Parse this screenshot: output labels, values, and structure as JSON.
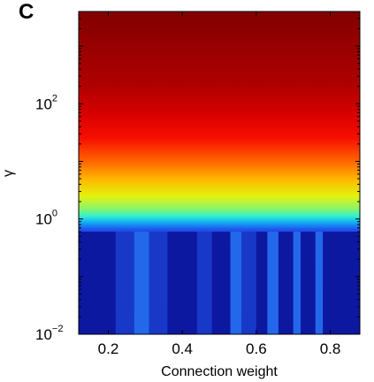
{
  "panel_label": "C",
  "chart_data": {
    "type": "heatmap",
    "title": "",
    "xlabel": "Connection weight",
    "ylabel": "γ",
    "xlim": [
      0.12,
      0.88
    ],
    "ylim_log10": [
      -2,
      3.6
    ],
    "y_scale": "log",
    "grid": false,
    "legend": "none",
    "colormap": "jet",
    "x_ticks": [
      {
        "value": 0.2,
        "label": "0.2"
      },
      {
        "value": 0.4,
        "label": "0.4"
      },
      {
        "value": 0.6,
        "label": "0.6"
      },
      {
        "value": 0.8,
        "label": "0.8"
      }
    ],
    "y_ticks": [
      {
        "value": 0.01,
        "base": "10",
        "exp": "−2"
      },
      {
        "value": 1,
        "base": "10",
        "exp": "0"
      },
      {
        "value": 100,
        "base": "10",
        "exp": "2"
      }
    ],
    "color_by_log10_gamma": [
      {
        "log10_gamma": -2.0,
        "color": "#1525c8"
      },
      {
        "log10_gamma": -0.3,
        "color": "#1a34d6"
      },
      {
        "log10_gamma": -0.18,
        "color": "#1f55ee"
      },
      {
        "log10_gamma": -0.05,
        "color": "#11b4f4"
      },
      {
        "log10_gamma": 0.05,
        "color": "#34f0cc"
      },
      {
        "log10_gamma": 0.18,
        "color": "#8cf56a"
      },
      {
        "log10_gamma": 0.4,
        "color": "#e4f20d"
      },
      {
        "log10_gamma": 0.7,
        "color": "#ffb400"
      },
      {
        "log10_gamma": 1.0,
        "color": "#ff6600"
      },
      {
        "log10_gamma": 1.4,
        "color": "#f70f00"
      },
      {
        "log10_gamma": 1.8,
        "color": "#d90000"
      },
      {
        "log10_gamma": 2.3,
        "color": "#b00000"
      },
      {
        "log10_gamma": 3.6,
        "color": "#820000"
      }
    ],
    "low_gamma_stripes": [
      {
        "x_start": 0.12,
        "x_end": 0.22,
        "shade": "dark"
      },
      {
        "x_start": 0.22,
        "x_end": 0.27,
        "shade": "mid"
      },
      {
        "x_start": 0.27,
        "x_end": 0.31,
        "shade": "light"
      },
      {
        "x_start": 0.31,
        "x_end": 0.36,
        "shade": "mid"
      },
      {
        "x_start": 0.36,
        "x_end": 0.44,
        "shade": "dark"
      },
      {
        "x_start": 0.44,
        "x_end": 0.48,
        "shade": "mid"
      },
      {
        "x_start": 0.48,
        "x_end": 0.53,
        "shade": "dark"
      },
      {
        "x_start": 0.53,
        "x_end": 0.56,
        "shade": "light"
      },
      {
        "x_start": 0.56,
        "x_end": 0.6,
        "shade": "mid"
      },
      {
        "x_start": 0.6,
        "x_end": 0.63,
        "shade": "dark"
      },
      {
        "x_start": 0.63,
        "x_end": 0.66,
        "shade": "light"
      },
      {
        "x_start": 0.66,
        "x_end": 0.7,
        "shade": "dark"
      },
      {
        "x_start": 0.7,
        "x_end": 0.72,
        "shade": "light"
      },
      {
        "x_start": 0.72,
        "x_end": 0.76,
        "shade": "dark"
      },
      {
        "x_start": 0.76,
        "x_end": 0.78,
        "shade": "light"
      },
      {
        "x_start": 0.78,
        "x_end": 0.88,
        "shade": "dark"
      }
    ],
    "stripe_colors": {
      "dark": "#0d18a0",
      "mid": "#1838c8",
      "light": "#2368ea"
    }
  }
}
